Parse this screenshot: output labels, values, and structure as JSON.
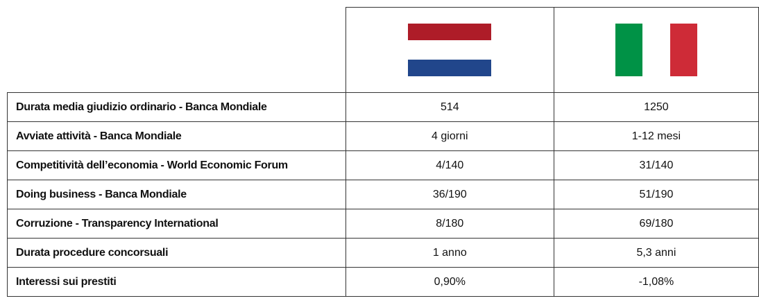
{
  "table": {
    "rows": [
      [
        "Durata media giudizio ordinario - Banca Mondiale",
        "514",
        "1250"
      ],
      [
        "Avviate attività - Banca Mondiale",
        "4 giorni",
        "1-12 mesi"
      ],
      [
        "Competitività dell’economia - World Economic Forum",
        "4/140",
        "31/140"
      ],
      [
        "Doing business - Banca Mondiale",
        "36/190",
        "51/190"
      ],
      [
        "Corruzione - Transparency International",
        "8/180",
        "69/180"
      ],
      [
        "Durata procedure concorsuali",
        "1 anno",
        "5,3 anni"
      ],
      [
        "Interessi sui prestiti",
        "0,90%",
        "-1,08%"
      ]
    ]
  }
}
